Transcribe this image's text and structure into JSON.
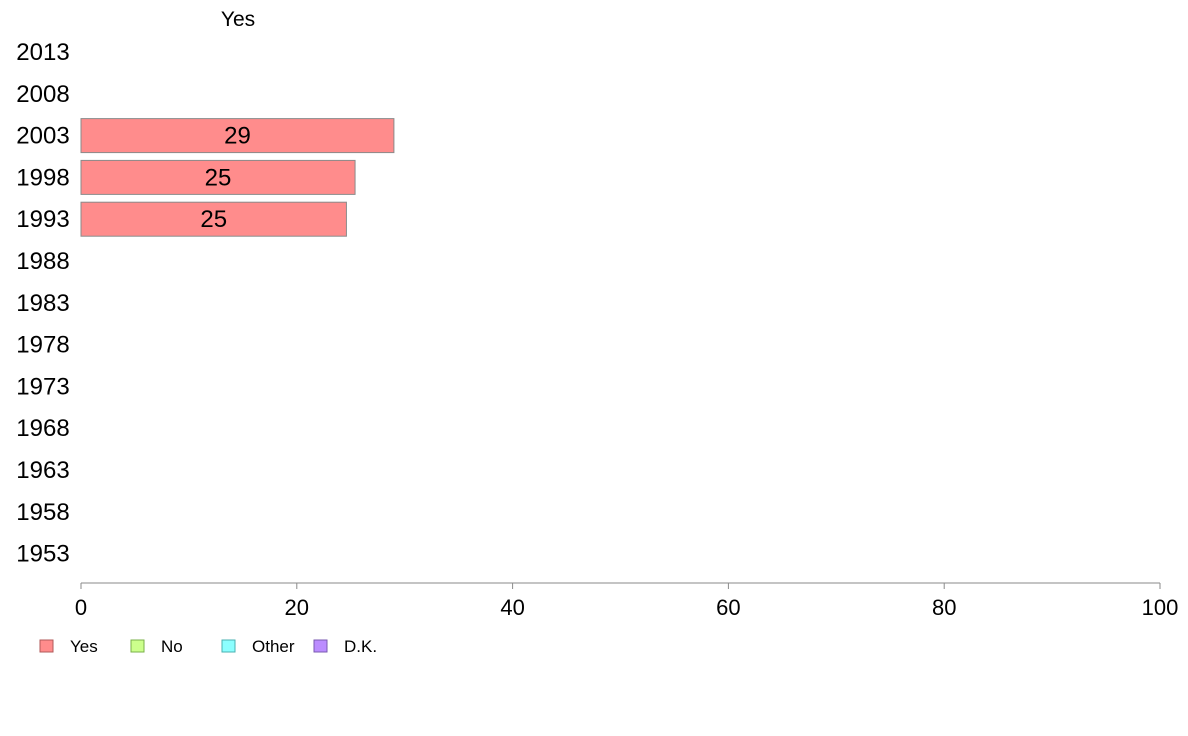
{
  "chart_data": {
    "type": "bar",
    "orientation": "horizontal",
    "series_header": "Yes",
    "categories": [
      "2013",
      "2008",
      "2003",
      "1998",
      "1993",
      "1988",
      "1983",
      "1978",
      "1973",
      "1968",
      "1963",
      "1958",
      "1953"
    ],
    "series": [
      {
        "name": "Yes",
        "values": [
          null,
          null,
          29,
          25.4,
          24.6,
          null,
          null,
          null,
          null,
          null,
          null,
          null,
          null
        ],
        "data_labels": [
          "",
          "",
          "29",
          "25",
          "25",
          "",
          "",
          "",
          "",
          "",
          "",
          "",
          ""
        ],
        "color": "#ff8c8c"
      }
    ],
    "x_ticks": [
      "0",
      "20",
      "40",
      "60",
      "80",
      "100"
    ],
    "xlim": [
      0,
      100
    ],
    "grid": false,
    "legend": {
      "placement": "bottom-left",
      "items": [
        {
          "label": "Yes",
          "color": "#ff8c8c",
          "border": "#b05a5a"
        },
        {
          "label": "No",
          "color": "#ccff8c",
          "border": "#7ab04a"
        },
        {
          "label": "Other",
          "color": "#8cffff",
          "border": "#4ab0b0"
        },
        {
          "label": "D.K.",
          "color": "#bb8cff",
          "border": "#7a5ab0"
        }
      ]
    },
    "bar_border_color": "#8a8a8a",
    "axis_color": "#8a8a8a"
  }
}
